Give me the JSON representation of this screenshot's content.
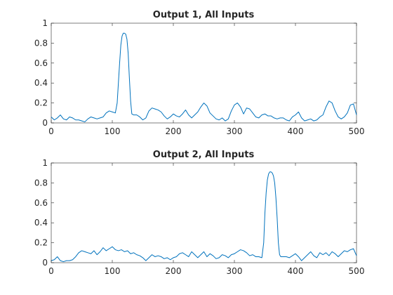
{
  "chart_data": [
    {
      "type": "line",
      "title": "Output 1, All Inputs",
      "xlabel": "",
      "ylabel": "",
      "xlim": [
        0,
        500
      ],
      "ylim": [
        0,
        1
      ],
      "xticks": [
        0,
        100,
        200,
        300,
        400,
        500
      ],
      "yticks": [
        0,
        0.2,
        0.4,
        0.6,
        0.8,
        1
      ],
      "xtick_labels": [
        "0",
        "100",
        "200",
        "300",
        "400",
        "500"
      ],
      "ytick_labels": [
        "0",
        "0.2",
        "0.4",
        "0.6",
        "0.8",
        "1"
      ],
      "grid": false,
      "color": "#0072bd",
      "series": [
        {
          "x": [
            0,
            5,
            10,
            15,
            20,
            25,
            30,
            35,
            40,
            45,
            50,
            55,
            60,
            65,
            70,
            75,
            80,
            85,
            90,
            95,
            100,
            105,
            108,
            110,
            112,
            114,
            116,
            118,
            120,
            122,
            124,
            126,
            128,
            130,
            132,
            135,
            140,
            145,
            150,
            155,
            160,
            165,
            170,
            175,
            180,
            185,
            190,
            195,
            200,
            205,
            210,
            215,
            220,
            225,
            230,
            235,
            240,
            245,
            250,
            255,
            260,
            265,
            270,
            275,
            280,
            285,
            290,
            295,
            300,
            305,
            310,
            315,
            320,
            325,
            330,
            335,
            340,
            345,
            350,
            355,
            360,
            365,
            370,
            375,
            380,
            385,
            390,
            395,
            400,
            405,
            410,
            415,
            420,
            425,
            430,
            435,
            440,
            445,
            450,
            455,
            460,
            465,
            470,
            475,
            480,
            485,
            490,
            495,
            500
          ],
          "y": [
            0.06,
            0.03,
            0.05,
            0.08,
            0.04,
            0.03,
            0.06,
            0.05,
            0.03,
            0.03,
            0.02,
            0.01,
            0.04,
            0.06,
            0.05,
            0.04,
            0.05,
            0.06,
            0.1,
            0.12,
            0.11,
            0.1,
            0.2,
            0.4,
            0.6,
            0.78,
            0.87,
            0.9,
            0.9,
            0.89,
            0.84,
            0.7,
            0.45,
            0.22,
            0.09,
            0.08,
            0.08,
            0.06,
            0.03,
            0.05,
            0.12,
            0.15,
            0.14,
            0.13,
            0.11,
            0.07,
            0.04,
            0.06,
            0.09,
            0.07,
            0.06,
            0.09,
            0.13,
            0.08,
            0.05,
            0.08,
            0.11,
            0.16,
            0.2,
            0.17,
            0.1,
            0.07,
            0.04,
            0.03,
            0.05,
            0.02,
            0.04,
            0.12,
            0.18,
            0.2,
            0.16,
            0.09,
            0.15,
            0.14,
            0.1,
            0.06,
            0.05,
            0.08,
            0.09,
            0.07,
            0.07,
            0.05,
            0.04,
            0.05,
            0.05,
            0.03,
            0.02,
            0.06,
            0.08,
            0.11,
            0.05,
            0.02,
            0.03,
            0.04,
            0.02,
            0.03,
            0.06,
            0.08,
            0.16,
            0.22,
            0.2,
            0.12,
            0.06,
            0.04,
            0.06,
            0.1,
            0.18,
            0.19,
            0.08
          ]
        }
      ]
    },
    {
      "type": "line",
      "title": "Output 2, All Inputs",
      "xlabel": "",
      "ylabel": "",
      "xlim": [
        0,
        500
      ],
      "ylim": [
        0,
        1
      ],
      "xticks": [
        0,
        100,
        200,
        300,
        400,
        500
      ],
      "yticks": [
        0,
        0.2,
        0.4,
        0.6,
        0.8,
        1
      ],
      "xtick_labels": [
        "0",
        "100",
        "200",
        "300",
        "400",
        "500"
      ],
      "ytick_labels": [
        "0",
        "0.2",
        "0.4",
        "0.6",
        "0.8",
        "1"
      ],
      "grid": false,
      "color": "#0072bd",
      "series": [
        {
          "x": [
            0,
            5,
            10,
            15,
            20,
            25,
            30,
            35,
            40,
            45,
            50,
            55,
            60,
            65,
            70,
            75,
            80,
            85,
            90,
            95,
            100,
            105,
            110,
            115,
            120,
            125,
            130,
            135,
            140,
            145,
            150,
            155,
            160,
            165,
            170,
            175,
            180,
            185,
            190,
            195,
            200,
            205,
            210,
            215,
            220,
            225,
            230,
            235,
            240,
            245,
            250,
            255,
            260,
            265,
            270,
            275,
            280,
            285,
            290,
            295,
            300,
            305,
            310,
            315,
            320,
            325,
            330,
            335,
            340,
            345,
            348,
            350,
            352,
            354,
            356,
            358,
            360,
            362,
            364,
            366,
            368,
            370,
            372,
            374,
            376,
            380,
            385,
            390,
            395,
            400,
            405,
            410,
            415,
            420,
            425,
            430,
            435,
            440,
            445,
            450,
            455,
            460,
            465,
            470,
            475,
            480,
            485,
            490,
            495,
            500
          ],
          "y": [
            0.02,
            0.03,
            0.06,
            0.02,
            0.01,
            0.02,
            0.02,
            0.03,
            0.06,
            0.1,
            0.12,
            0.11,
            0.1,
            0.09,
            0.12,
            0.08,
            0.11,
            0.15,
            0.12,
            0.14,
            0.16,
            0.13,
            0.12,
            0.13,
            0.11,
            0.12,
            0.09,
            0.1,
            0.08,
            0.07,
            0.05,
            0.02,
            0.05,
            0.08,
            0.06,
            0.07,
            0.06,
            0.04,
            0.05,
            0.03,
            0.05,
            0.06,
            0.09,
            0.1,
            0.08,
            0.06,
            0.11,
            0.08,
            0.05,
            0.08,
            0.11,
            0.06,
            0.09,
            0.07,
            0.04,
            0.05,
            0.08,
            0.07,
            0.05,
            0.08,
            0.09,
            0.11,
            0.13,
            0.12,
            0.1,
            0.07,
            0.08,
            0.06,
            0.06,
            0.05,
            0.2,
            0.5,
            0.7,
            0.83,
            0.89,
            0.91,
            0.91,
            0.9,
            0.87,
            0.8,
            0.65,
            0.45,
            0.2,
            0.08,
            0.06,
            0.06,
            0.06,
            0.05,
            0.07,
            0.09,
            0.06,
            0.02,
            0.05,
            0.08,
            0.11,
            0.07,
            0.05,
            0.1,
            0.08,
            0.1,
            0.07,
            0.11,
            0.09,
            0.06,
            0.09,
            0.12,
            0.11,
            0.13,
            0.14,
            0.07
          ]
        }
      ]
    }
  ]
}
